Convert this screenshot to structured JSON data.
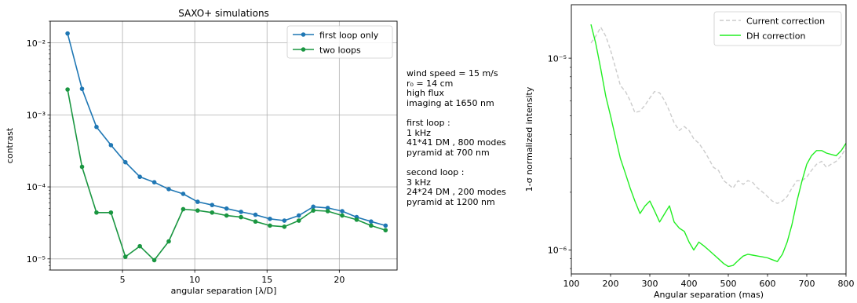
{
  "chart_data": [
    {
      "type": "line",
      "title": "SAXO+ simulations",
      "xlabel": "angular separation [λ/D]",
      "ylabel": "contrast",
      "xlim": [
        0,
        24
      ],
      "ylim": [
        7e-06,
        0.02
      ],
      "yscale": "log",
      "grid": true,
      "legend_position": "top-right",
      "xticks": [
        5,
        10,
        15,
        20
      ],
      "yticks": [
        {
          "value": 1e-05,
          "label": "10⁻⁵"
        },
        {
          "value": 0.0001,
          "label": "10⁻⁴"
        },
        {
          "value": 0.001,
          "label": "10⁻³"
        },
        {
          "value": 0.01,
          "label": "10⁻²"
        }
      ],
      "x": [
        1.2,
        2.2,
        3.2,
        4.2,
        5.2,
        6.2,
        7.2,
        8.2,
        9.2,
        10.2,
        11.2,
        12.2,
        13.2,
        14.2,
        15.2,
        16.2,
        17.2,
        18.2,
        19.2,
        20.2,
        21.2,
        22.2,
        23.2
      ],
      "series": [
        {
          "name": "first loop only",
          "color": "#1f77b4",
          "values": [
            0.0135,
            0.0023,
            0.00068,
            0.00038,
            0.00022,
            0.000138,
            0.000116,
            9.3e-05,
            8e-05,
            6.2e-05,
            5.6e-05,
            5e-05,
            4.5e-05,
            4.1e-05,
            3.6e-05,
            3.4e-05,
            4e-05,
            5.3e-05,
            5.1e-05,
            4.6e-05,
            3.8e-05,
            3.3e-05,
            2.9e-05
          ]
        },
        {
          "name": "two loops",
          "color": "#1a9641",
          "values": [
            0.00225,
            0.00019,
            4.4e-05,
            4.4e-05,
            1.07e-05,
            1.5e-05,
            9.6e-06,
            1.75e-05,
            4.9e-05,
            4.7e-05,
            4.4e-05,
            4e-05,
            3.8e-05,
            3.3e-05,
            2.9e-05,
            2.8e-05,
            3.4e-05,
            4.7e-05,
            4.6e-05,
            4e-05,
            3.5e-05,
            2.9e-05,
            2.5e-05
          ]
        }
      ]
    },
    {
      "type": "line",
      "title": "",
      "xlabel": "Angular separation (mas)",
      "ylabel": "1-σ normalized intensity",
      "xlim": [
        100,
        800
      ],
      "ylim": [
        7.5e-07,
        1.9e-05
      ],
      "yscale": "log",
      "grid": false,
      "legend_position": "top-right",
      "xticks": [
        100,
        200,
        300,
        400,
        500,
        600,
        700,
        800
      ],
      "yticks": [
        {
          "value": 1e-06,
          "label": "10⁻⁶"
        },
        {
          "value": 1e-05,
          "label": "10⁻⁵"
        }
      ],
      "series": [
        {
          "name": "Current correction",
          "color": "#cccccc",
          "dashed": true,
          "x": [
            150,
            162,
            175,
            188,
            200,
            212,
            225,
            238,
            250,
            262,
            275,
            288,
            300,
            312,
            325,
            338,
            350,
            362,
            375,
            388,
            400,
            412,
            425,
            438,
            450,
            462,
            475,
            488,
            500,
            512,
            525,
            538,
            550,
            562,
            575,
            588,
            600,
            612,
            625,
            638,
            650,
            662,
            675,
            688,
            700,
            712,
            725,
            738,
            750,
            762,
            775,
            788,
            800
          ],
          "values": [
            1.2e-05,
            1.3e-05,
            1.45e-05,
            1.3e-05,
            1.1e-05,
            9e-06,
            7.2e-06,
            6.7e-06,
            6e-06,
            5.2e-06,
            5.3e-06,
            5.7e-06,
            6.2e-06,
            6.7e-06,
            6.6e-06,
            6e-06,
            5.3e-06,
            4.6e-06,
            4.2e-06,
            4.4e-06,
            4.2e-06,
            3.8e-06,
            3.6e-06,
            3.3e-06,
            3e-06,
            2.7e-06,
            2.6e-06,
            2.3e-06,
            2.2e-06,
            2.1e-06,
            2.3e-06,
            2.2e-06,
            2.3e-06,
            2.25e-06,
            2.1e-06,
            2e-06,
            1.9e-06,
            1.8e-06,
            1.75e-06,
            1.8e-06,
            1.9e-06,
            2.1e-06,
            2.3e-06,
            2.3e-06,
            2.4e-06,
            2.6e-06,
            2.8e-06,
            2.9e-06,
            2.7e-06,
            2.8e-06,
            2.9e-06,
            3.1e-06,
            3.4e-06
          ]
        },
        {
          "name": "DH correction",
          "color": "#22ee22",
          "dashed": false,
          "x": [
            150,
            162,
            175,
            188,
            200,
            212,
            225,
            238,
            250,
            262,
            275,
            288,
            300,
            312,
            325,
            338,
            350,
            362,
            375,
            388,
            400,
            412,
            425,
            438,
            450,
            462,
            475,
            488,
            500,
            512,
            525,
            538,
            550,
            562,
            575,
            588,
            600,
            612,
            625,
            638,
            650,
            662,
            675,
            688,
            700,
            712,
            725,
            738,
            750,
            762,
            775,
            788,
            800
          ],
          "values": [
            1.5e-05,
            1.2e-05,
            8.8e-06,
            6.3e-06,
            5e-06,
            3.9e-06,
            3e-06,
            2.5e-06,
            2.1e-06,
            1.8e-06,
            1.55e-06,
            1.7e-06,
            1.8e-06,
            1.6e-06,
            1.4e-06,
            1.55e-06,
            1.7e-06,
            1.4e-06,
            1.3e-06,
            1.25e-06,
            1.1e-06,
            1e-06,
            1.1e-06,
            1.05e-06,
            1e-06,
            9.5e-07,
            9e-07,
            8.5e-07,
            8.2e-07,
            8.3e-07,
            8.8e-07,
            9.3e-07,
            9.5e-07,
            9.4e-07,
            9.3e-07,
            9.2e-07,
            9.1e-07,
            8.9e-07,
            8.7e-07,
            9.5e-07,
            1.1e-06,
            1.35e-06,
            1.8e-06,
            2.3e-06,
            2.8e-06,
            3.1e-06,
            3.3e-06,
            3.3e-06,
            3.2e-06,
            3.15e-06,
            3.1e-06,
            3.3e-06,
            3.6e-06
          ]
        }
      ]
    }
  ],
  "params": {
    "block1": [
      "wind speed = 15 m/s",
      "r₀ = 14 cm",
      "high flux",
      "imaging at 1650 nm"
    ],
    "block2": [
      "first loop :",
      "1 kHz",
      "41*41 DM , 800 modes",
      "pyramid at 700 nm"
    ],
    "block3": [
      "second loop :",
      "3 kHz",
      "24*24 DM , 200 modes",
      "pyramid at 1200 nm"
    ]
  }
}
